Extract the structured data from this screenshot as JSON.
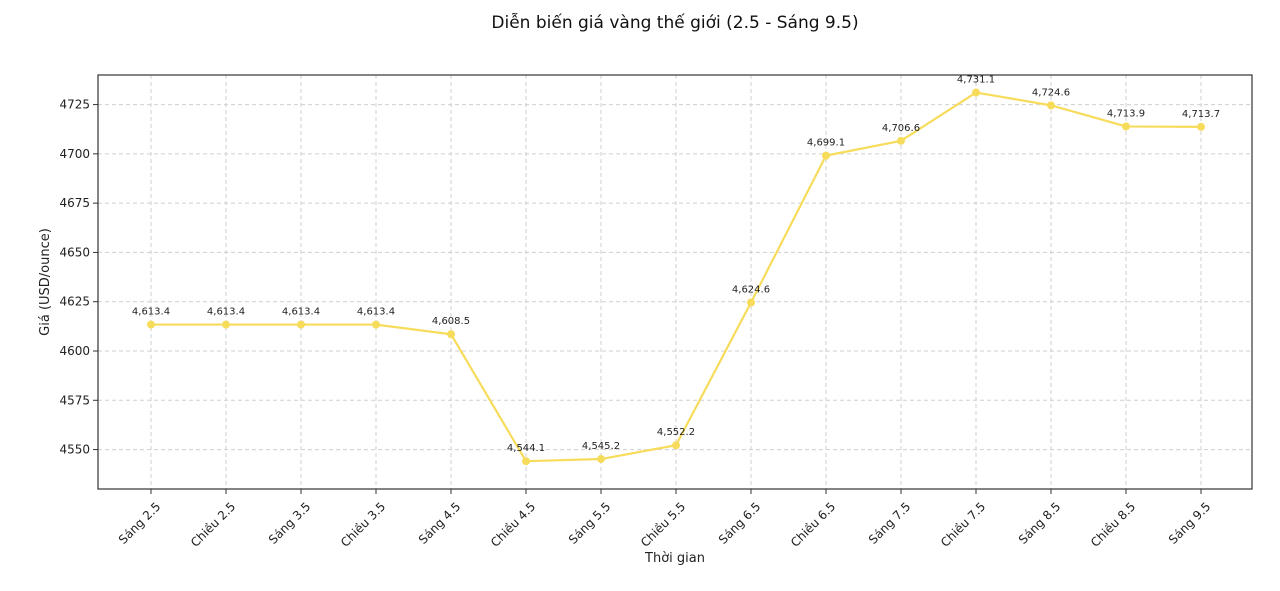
{
  "chart_data": {
    "type": "line",
    "title": "Diễn biến giá vàng thế giới (2.5 - Sáng 9.5)",
    "xlabel": "Thời gian",
    "ylabel": "Giá (USD/ounce)",
    "categories": [
      "Sáng 2.5",
      "Chiều 2.5",
      "Sáng 3.5",
      "Chiều 3.5",
      "Sáng 4.5",
      "Chiều 4.5",
      "Sáng 5.5",
      "Chiều 5.5",
      "Sáng 6.5",
      "Chiều 6.5",
      "Sáng 7.5",
      "Chiều 7.5",
      "Sáng 8.5",
      "Chiều 8.5",
      "Sáng 9.5"
    ],
    "values": [
      4613.4,
      4613.4,
      4613.4,
      4613.4,
      4608.5,
      4544.1,
      4545.2,
      4552.2,
      4624.6,
      4699.1,
      4706.6,
      4731.1,
      4724.6,
      4713.9,
      4713.7
    ],
    "data_labels": [
      "4,613.4",
      "4,613.4",
      "4,613.4",
      "4,613.4",
      "4,608.5",
      "4,544.1",
      "4,545.2",
      "4,552.2",
      "4,624.6",
      "4,699.1",
      "4,706.6",
      "4,731.1",
      "4,724.6",
      "4,713.9",
      "4,713.7"
    ],
    "yticks": [
      4550,
      4575,
      4600,
      4625,
      4650,
      4675,
      4700,
      4725
    ],
    "ylim": [
      4530,
      4740
    ],
    "grid": true,
    "line_color": "#f7dc5c",
    "marker_color": "#f7dc5c"
  }
}
